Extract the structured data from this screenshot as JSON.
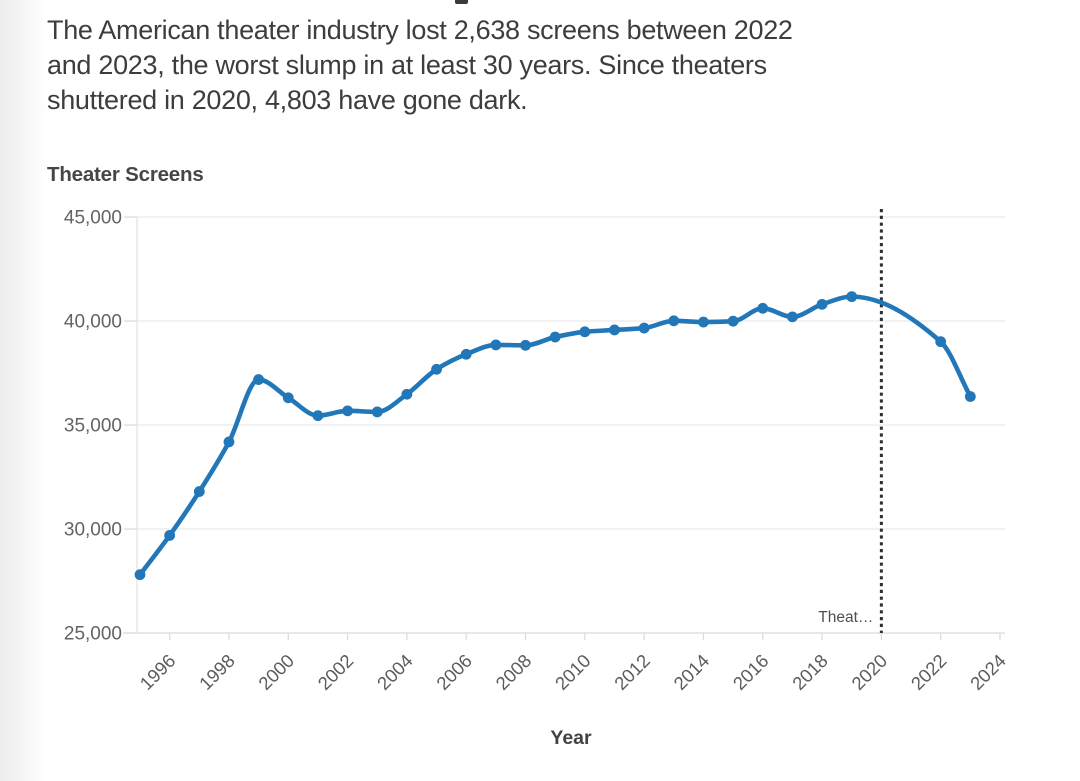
{
  "header": {
    "subtitle_lines": [
      "The American theater industry lost 2,638 screens between 2022",
      "and 2023, the worst slump in at least 30 years. Since theaters",
      "shuttered in 2020, 4,803 have gone dark."
    ]
  },
  "chart": {
    "title": "Theater Screens",
    "x_axis_title": "Year"
  },
  "chart_data": {
    "type": "line",
    "title": "Theater Screens",
    "xlabel": "Year",
    "ylabel": "Theater Screens",
    "x": [
      1995,
      1996,
      1997,
      1998,
      1999,
      2000,
      2001,
      2002,
      2003,
      2004,
      2005,
      2006,
      2007,
      2008,
      2009,
      2010,
      2011,
      2012,
      2013,
      2014,
      2015,
      2016,
      2017,
      2018,
      2019,
      2022,
      2023
    ],
    "values": [
      27805,
      29690,
      31800,
      34186,
      37185,
      36310,
      35450,
      35680,
      35630,
      36480,
      37680,
      38400,
      38850,
      38830,
      39230,
      39480,
      39570,
      39660,
      40010,
      39950,
      39990,
      40610,
      40200,
      40800,
      41172,
      39007,
      36369
    ],
    "xlim": [
      1995,
      2024
    ],
    "ylim": [
      25000,
      45000
    ],
    "x_ticks": [
      1996,
      1998,
      2000,
      2002,
      2004,
      2006,
      2008,
      2010,
      2012,
      2014,
      2016,
      2018,
      2020,
      2022,
      2024
    ],
    "y_ticks": [
      25000,
      30000,
      35000,
      40000,
      45000
    ],
    "y_tick_labels": [
      "25,000",
      "30,000",
      "35,000",
      "40,000",
      "45,000"
    ],
    "grid": "horizontal",
    "legend": "none",
    "line_color": "#2277b8",
    "marker": "circle",
    "reference_line": {
      "x": 2020,
      "style": "dotted",
      "color": "#2f2f2f",
      "label": "Theat…"
    }
  }
}
